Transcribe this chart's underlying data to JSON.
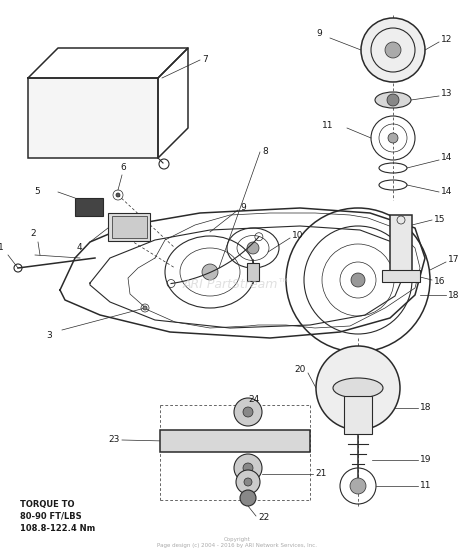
{
  "bg_color": "#ffffff",
  "line_color": "#2a2a2a",
  "label_color": "#1a1a1a",
  "watermark": "ARI PartStream™",
  "watermark_color": "#cccccc",
  "copyright": "Copyright\nPage design (c) 2004 - 2016 by ARI Network Services, Inc.",
  "torque_text": "TORQUE TO\n80-90 FT/LBS\n108.8-122.4 Nm",
  "figsize": [
    4.74,
    5.58
  ],
  "dpi": 100
}
